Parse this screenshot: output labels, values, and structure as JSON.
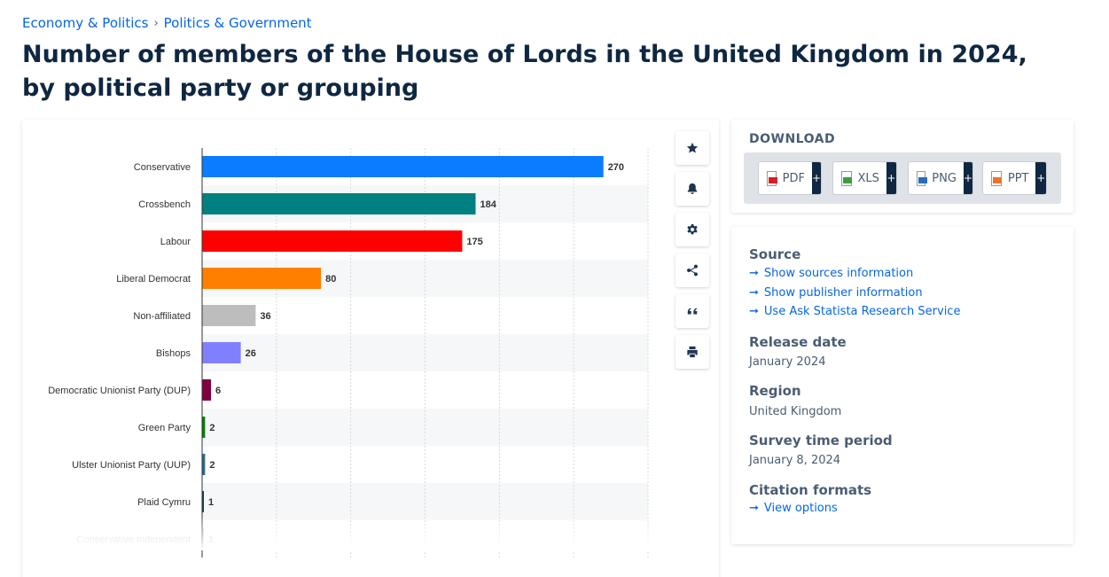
{
  "breadcrumb": {
    "items": [
      "Economy & Politics",
      "Politics & Government"
    ],
    "separator": "›"
  },
  "page": {
    "title": "Number of members of the House of Lords in the United Kingdom in 2024, by political party or grouping"
  },
  "toolbar": {
    "icons": [
      "star-icon",
      "bell-icon",
      "gear-icon",
      "share-icon",
      "quote-icon",
      "print-icon"
    ]
  },
  "download": {
    "title": "DOWNLOAD",
    "formats": [
      {
        "label": "PDF",
        "color": "#d32027"
      },
      {
        "label": "XLS",
        "color": "#3f9e3a"
      },
      {
        "label": "PNG",
        "color": "#2a6bb8"
      },
      {
        "label": "PPT",
        "color": "#e9742b"
      }
    ],
    "plus": "+"
  },
  "info": {
    "source_heading": "Source",
    "links": [
      "Show sources information",
      "Show publisher information",
      "Use Ask Statista Research Service"
    ],
    "release_heading": "Release date",
    "release_value": "January 2024",
    "region_heading": "Region",
    "region_value": "United Kingdom",
    "survey_heading": "Survey time period",
    "survey_value": "January 8, 2024",
    "citation_heading": "Citation formats",
    "citation_link": "View options",
    "arrow": "➞"
  },
  "chart_data": {
    "type": "bar",
    "orientation": "horizontal",
    "categories": [
      "Conservative",
      "Crossbench",
      "Labour",
      "Liberal Democrat",
      "Non-affiliated",
      "Bishops",
      "Democratic Unionist Party (DUP)",
      "Green Party",
      "Ulster Unionist Party (UUP)",
      "Plaid Cymru",
      "Conservative Independent"
    ],
    "values": [
      270,
      184,
      175,
      80,
      36,
      26,
      6,
      2,
      2,
      1,
      1
    ],
    "colors": [
      "#0a7cff",
      "#008080",
      "#ff0000",
      "#ff8000",
      "#bdbdbd",
      "#8080ff",
      "#800040",
      "#008000",
      "#2d6b8c",
      "#004060",
      "#0a7cff"
    ],
    "xlim": [
      0,
      300
    ],
    "grid": true,
    "title": "",
    "xlabel": "",
    "ylabel": ""
  }
}
